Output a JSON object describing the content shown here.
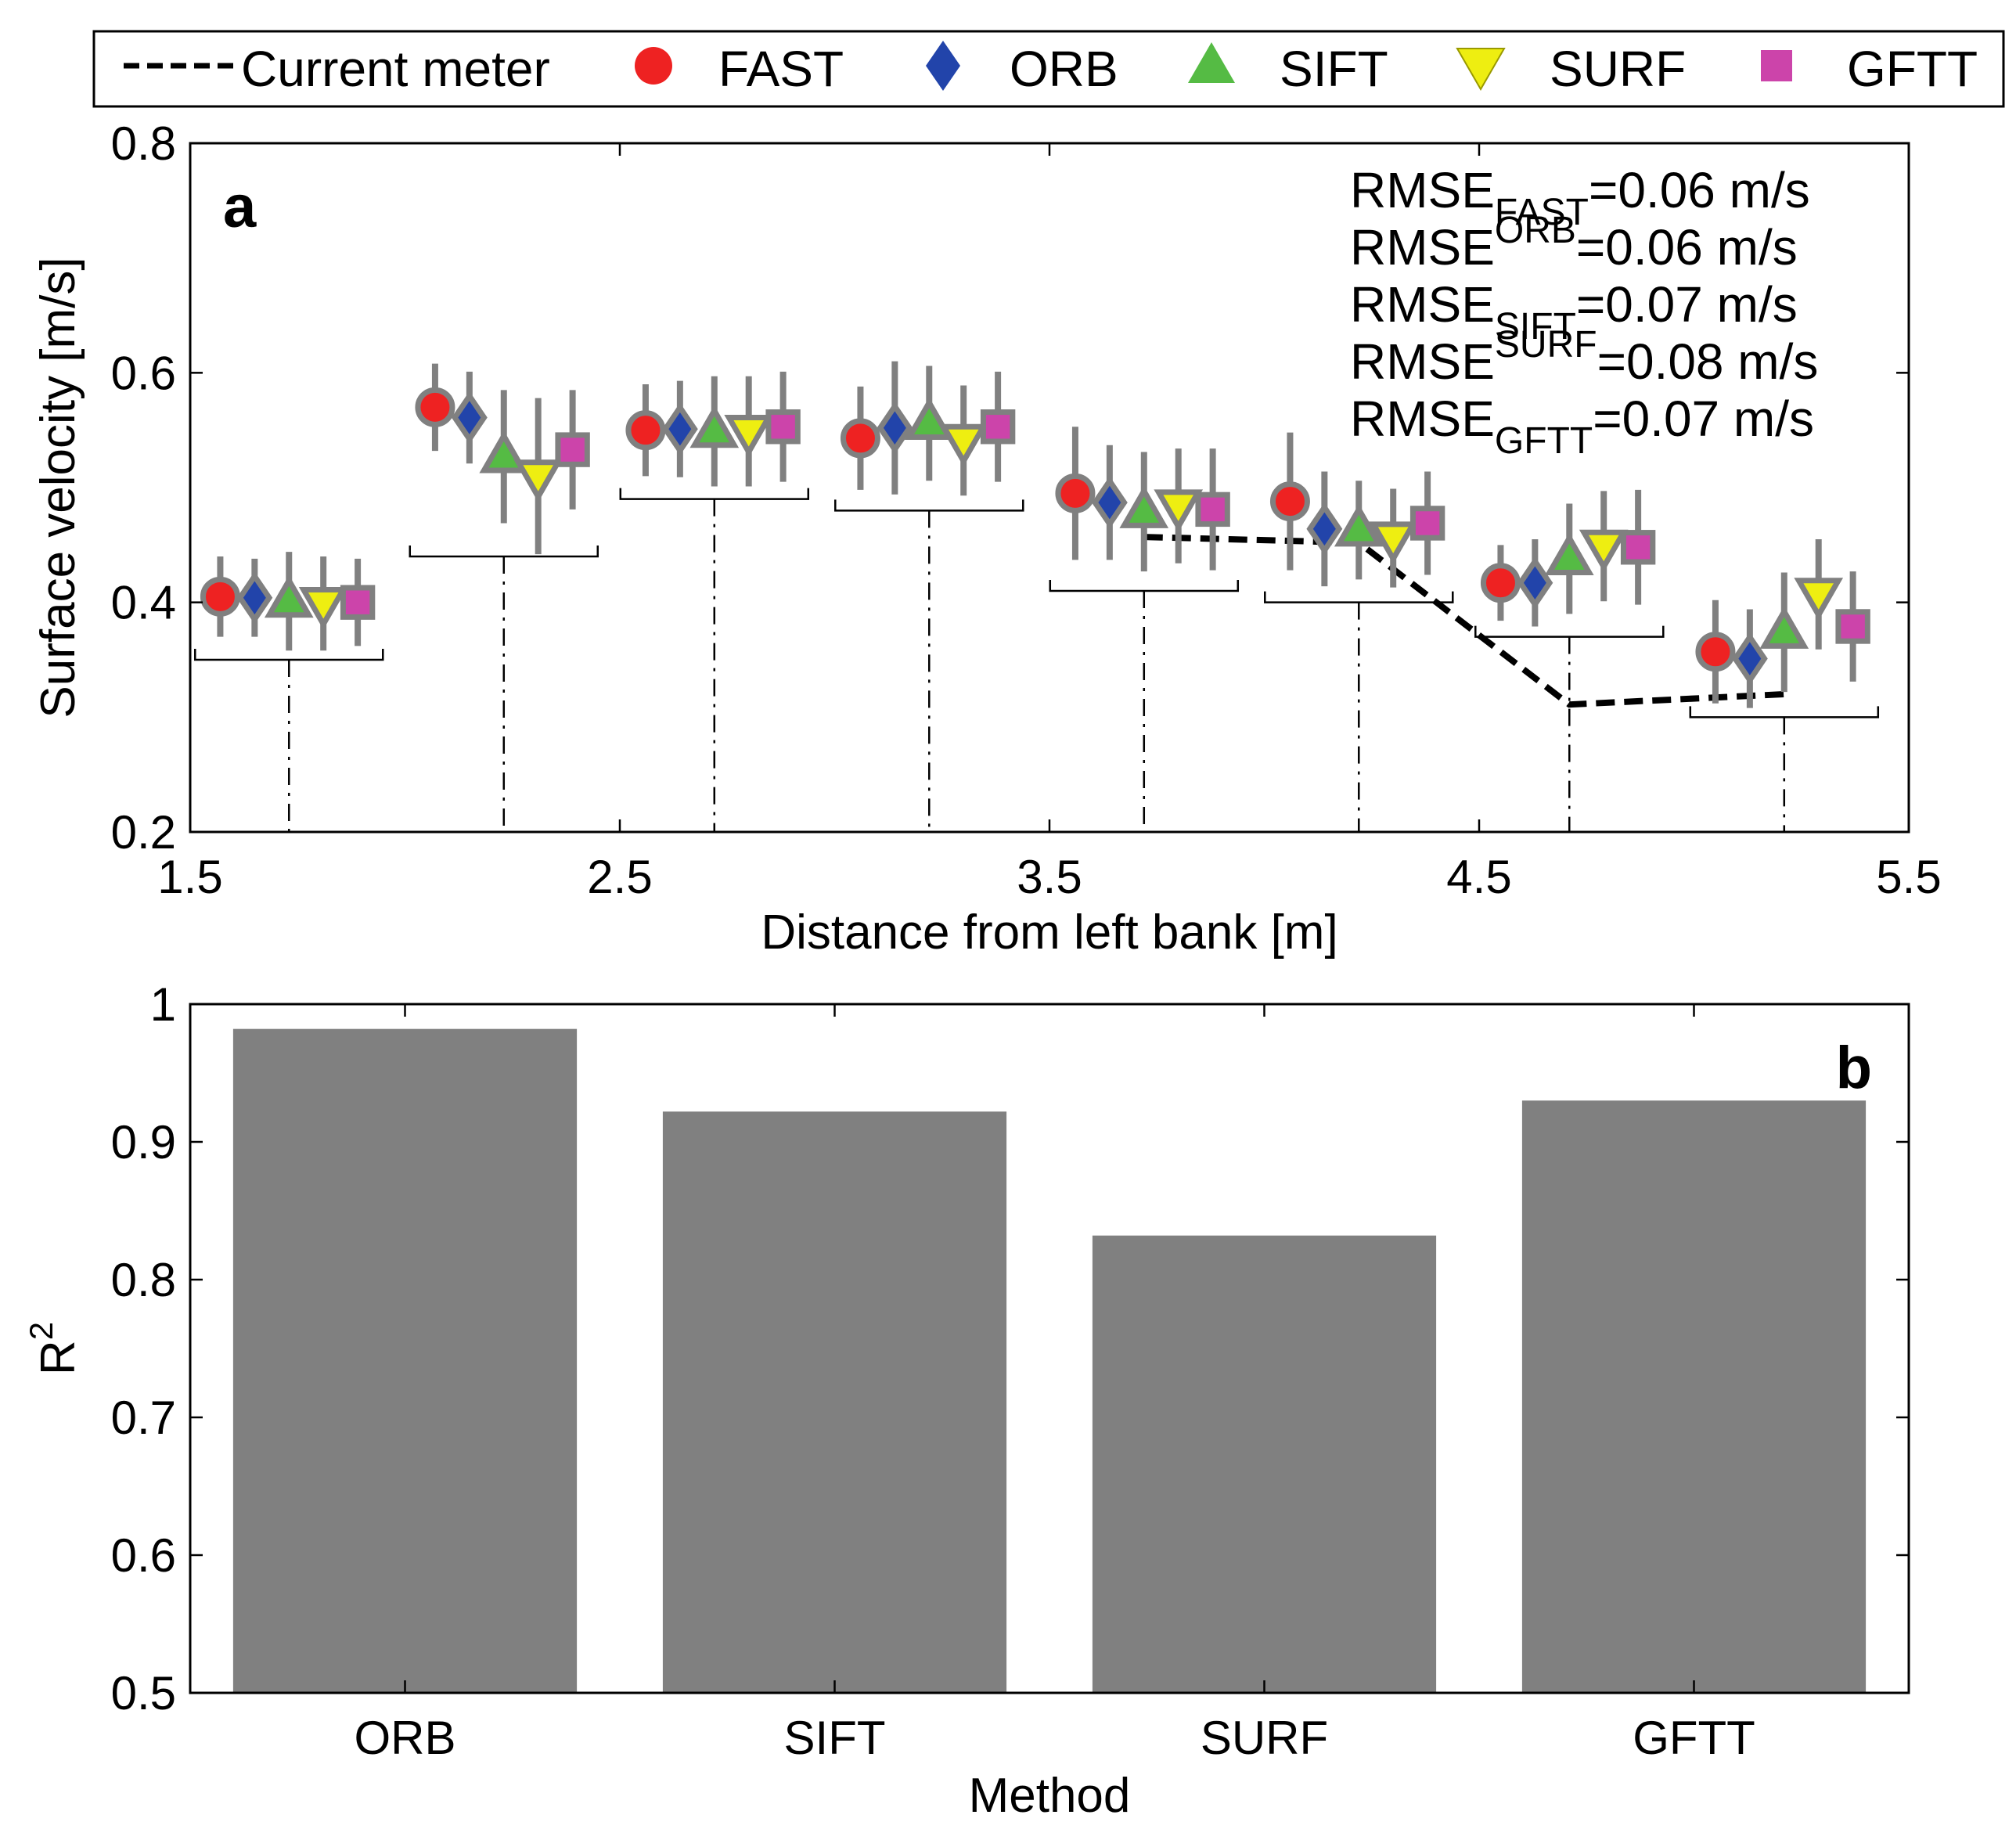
{
  "colors": {
    "FAST": "#ee2222",
    "ORB": "#2244aa",
    "SIFT": "#55bb44",
    "SURF": "#eeee11",
    "GFTT": "#cc44aa",
    "marker_edge": "#808080",
    "errorbar": "#808080",
    "bar": "#808080",
    "axis": "#000000"
  },
  "chart_data": [
    {
      "id": "a",
      "type": "scatter",
      "panel_label": "a",
      "xlabel": "Distance from left bank [m]",
      "ylabel": "Surface velocity [m/s]",
      "xlim": [
        1.5,
        5.5
      ],
      "ylim": [
        0.2,
        0.8
      ],
      "xticks": [
        1.5,
        2.5,
        3.5,
        4.5,
        5.5
      ],
      "xtick_labels": [
        "1.5",
        "2.5",
        "3.5",
        "4.5",
        "5.5"
      ],
      "yticks": [
        0.2,
        0.4,
        0.6,
        0.8
      ],
      "ytick_labels": [
        "0.2",
        "0.4",
        "0.6",
        "0.8"
      ],
      "legend": {
        "position": "top (outside, above panel a)",
        "entries": [
          {
            "label": "Current meter",
            "marker": "dashed-line"
          },
          {
            "label": "FAST",
            "marker": "circle"
          },
          {
            "label": "ORB",
            "marker": "diamond"
          },
          {
            "label": "SIFT",
            "marker": "triangle-up"
          },
          {
            "label": "SURF",
            "marker": "triangle-down"
          },
          {
            "label": "GFTT",
            "marker": "square"
          }
        ]
      },
      "stations": [
        1.73,
        2.23,
        2.72,
        3.22,
        3.72,
        4.22,
        4.71,
        5.21
      ],
      "station_bracket_y": [
        0.35,
        0.44,
        0.49,
        0.48,
        0.41,
        0.4,
        0.37,
        0.3
      ],
      "series": [
        {
          "name": "FAST",
          "marker": "circle",
          "x": [
            1.57,
            2.07,
            2.56,
            3.06,
            3.56,
            4.06,
            4.55,
            5.05
          ],
          "y": [
            0.405,
            0.57,
            0.55,
            0.543,
            0.495,
            0.488,
            0.417,
            0.357
          ],
          "err": [
            0.035,
            0.038,
            0.04,
            0.045,
            0.058,
            0.06,
            0.033,
            0.045
          ]
        },
        {
          "name": "ORB",
          "marker": "diamond",
          "x": [
            1.65,
            2.15,
            2.64,
            3.14,
            3.64,
            4.14,
            4.63,
            5.13
          ],
          "y": [
            0.404,
            0.561,
            0.551,
            0.552,
            0.487,
            0.464,
            0.417,
            0.351
          ],
          "err": [
            0.034,
            0.04,
            0.042,
            0.058,
            0.05,
            0.05,
            0.038,
            0.043
          ]
        },
        {
          "name": "SIFT",
          "marker": "triangle-up",
          "x": [
            1.73,
            2.23,
            2.72,
            3.22,
            3.72,
            4.22,
            4.71,
            5.21
          ],
          "y": [
            0.401,
            0.527,
            0.549,
            0.556,
            0.479,
            0.463,
            0.438,
            0.374
          ],
          "err": [
            0.043,
            0.058,
            0.048,
            0.05,
            0.052,
            0.043,
            0.048,
            0.052
          ]
        },
        {
          "name": "SURF",
          "marker": "triangle-down",
          "x": [
            1.81,
            2.31,
            2.8,
            3.3,
            3.8,
            4.3,
            4.79,
            5.29
          ],
          "y": [
            0.399,
            0.51,
            0.549,
            0.541,
            0.484,
            0.456,
            0.449,
            0.407
          ],
          "err": [
            0.041,
            0.068,
            0.048,
            0.048,
            0.05,
            0.043,
            0.048,
            0.048
          ]
        },
        {
          "name": "GFTT",
          "marker": "square",
          "x": [
            1.89,
            2.39,
            2.88,
            3.38,
            3.88,
            4.38,
            4.87,
            5.37
          ],
          "y": [
            0.4,
            0.533,
            0.553,
            0.553,
            0.481,
            0.469,
            0.448,
            0.379
          ],
          "err": [
            0.038,
            0.052,
            0.048,
            0.048,
            0.053,
            0.045,
            0.05,
            0.048
          ]
        }
      ],
      "current_meter": {
        "name": "Current meter",
        "x": [
          3.72,
          4.22,
          4.71,
          5.21
        ],
        "y": [
          0.457,
          0.452,
          0.311,
          0.32
        ]
      },
      "annotations": {
        "rmse": [
          {
            "prefix": "RMSE",
            "sub": "FAST",
            "value": "=0.06 m/s"
          },
          {
            "prefix": "RMSE",
            "sub": "ORB",
            "value": "=0.06 m/s"
          },
          {
            "prefix": "RMSE",
            "sub": "SIFT",
            "value": "=0.07 m/s"
          },
          {
            "prefix": "RMSE",
            "sub": "SURF",
            "value": "=0.08 m/s"
          },
          {
            "prefix": "RMSE",
            "sub": "GFTT",
            "value": "=0.07 m/s"
          }
        ]
      }
    },
    {
      "id": "b",
      "type": "bar",
      "panel_label": "b",
      "xlabel": "Method",
      "ylabel_base": "R",
      "ylabel_sup": "2",
      "categories": [
        "ORB",
        "SIFT",
        "SURF",
        "GFTT"
      ],
      "values": [
        0.982,
        0.922,
        0.832,
        0.93
      ],
      "ylim": [
        0.5,
        1.0
      ],
      "yticks": [
        0.5,
        0.6,
        0.7,
        0.8,
        0.9,
        1.0
      ],
      "ytick_labels": [
        "0.5",
        "0.6",
        "0.7",
        "0.8",
        "0.9",
        "1"
      ]
    }
  ]
}
